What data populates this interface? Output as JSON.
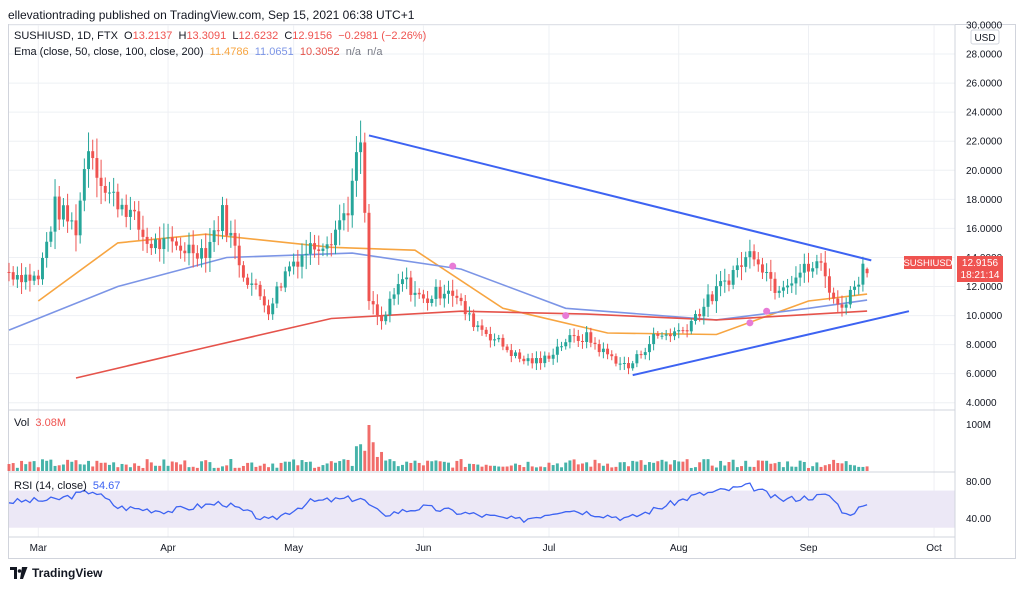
{
  "header": {
    "caption": "ellevationtrading published on TradingView.com, Sep 15, 2021 06:38 UTC+1"
  },
  "footer": {
    "brand": "TradingView",
    "logo_icon": "tradingview-logo-icon"
  },
  "colors": {
    "up": "#26a69a",
    "down": "#ef5350",
    "ema50": "#f7a541",
    "ema100": "#7c95e6",
    "ema200": "#e5534b",
    "trendline": "#3d63f2",
    "rsi": "#3d63f2",
    "rsi_band": "#ece8f6",
    "cross_marker": "#e77bd6",
    "price_badge": "#ef5350",
    "grid": "#eef0f4"
  },
  "legend": {
    "symbol": "SUSHIUSD, 1D, FTX",
    "o_label": "O",
    "o_value": "13.2137",
    "h_label": "H",
    "h_value": "13.3091",
    "l_label": "L",
    "l_value": "12.6232",
    "c_label": "C",
    "c_value": "12.9156",
    "change": "−0.2981 (−2.26%)",
    "ema_label": "Ema (close, 50, close, 100, close, 200)",
    "ema50_value": "11.4786",
    "ema100_value": "11.0651",
    "ema200_value": "10.3052",
    "na1": "n/a",
    "na2": "n/a"
  },
  "price_axis": {
    "currency": "USD",
    "ticks": [
      "30.0000",
      "28.0000",
      "26.0000",
      "24.0000",
      "22.0000",
      "20.0000",
      "18.0000",
      "16.0000",
      "14.0000",
      "12.0000",
      "10.0000",
      "8.0000",
      "6.0000",
      "4.0000"
    ],
    "last_symbol": "SUSHIUSD",
    "last_price": "12.9156",
    "countdown": "18:21:14"
  },
  "volume_pane": {
    "label": "Vol",
    "value": "3.08M",
    "axis_tick": "100M"
  },
  "rsi_pane": {
    "label": "RSI (14, close)",
    "value": "54.67",
    "ticks": [
      "80.00",
      "40.00"
    ]
  },
  "time_axis": {
    "labels": [
      "Mar",
      "Apr",
      "May",
      "Jun",
      "Jul",
      "Aug",
      "Sep",
      "Oct"
    ]
  },
  "chart_data": [
    {
      "type": "candlestick",
      "title": "SUSHIUSD, 1D, FTX",
      "ylim": [
        3.5,
        30
      ],
      "x_range": [
        "2021-02-22",
        "2021-10-06"
      ],
      "close_series": [
        {
          "date": "2021-02-22",
          "close": 13.0
        },
        {
          "date": "2021-03-01",
          "close": 12.5
        },
        {
          "date": "2021-03-05",
          "close": 17.5
        },
        {
          "date": "2021-03-10",
          "close": 16.0
        },
        {
          "date": "2021-03-13",
          "close": 22.0
        },
        {
          "date": "2021-03-17",
          "close": 18.5
        },
        {
          "date": "2021-03-22",
          "close": 17.5
        },
        {
          "date": "2021-03-27",
          "close": 15.0
        },
        {
          "date": "2021-04-04",
          "close": 14.7
        },
        {
          "date": "2021-04-10",
          "close": 14.5
        },
        {
          "date": "2021-04-14",
          "close": 17.0
        },
        {
          "date": "2021-04-19",
          "close": 13.0
        },
        {
          "date": "2021-04-25",
          "close": 10.5
        },
        {
          "date": "2021-04-30",
          "close": 13.5
        },
        {
          "date": "2021-05-05",
          "close": 14.7
        },
        {
          "date": "2021-05-10",
          "close": 15.5
        },
        {
          "date": "2021-05-14",
          "close": 17.5
        },
        {
          "date": "2021-05-17",
          "close": 22.0
        },
        {
          "date": "2021-05-19",
          "close": 11.0
        },
        {
          "date": "2021-05-22",
          "close": 9.5
        },
        {
          "date": "2021-05-27",
          "close": 12.5
        },
        {
          "date": "2021-06-01",
          "close": 11.0
        },
        {
          "date": "2021-06-07",
          "close": 12.0
        },
        {
          "date": "2021-06-12",
          "close": 9.8
        },
        {
          "date": "2021-06-18",
          "close": 8.4
        },
        {
          "date": "2021-06-24",
          "close": 7.0
        },
        {
          "date": "2021-06-29",
          "close": 6.8
        },
        {
          "date": "2021-07-05",
          "close": 8.3
        },
        {
          "date": "2021-07-10",
          "close": 8.5
        },
        {
          "date": "2021-07-14",
          "close": 7.5
        },
        {
          "date": "2021-07-20",
          "close": 6.4
        },
        {
          "date": "2021-07-26",
          "close": 8.5
        },
        {
          "date": "2021-08-02",
          "close": 9.0
        },
        {
          "date": "2021-08-08",
          "close": 11.0
        },
        {
          "date": "2021-08-14",
          "close": 13.0
        },
        {
          "date": "2021-08-19",
          "close": 14.5
        },
        {
          "date": "2021-08-24",
          "close": 12.0
        },
        {
          "date": "2021-08-30",
          "close": 13.0
        },
        {
          "date": "2021-09-04",
          "close": 13.5
        },
        {
          "date": "2021-09-08",
          "close": 10.5
        },
        {
          "date": "2021-09-11",
          "close": 11.5
        },
        {
          "date": "2021-09-14",
          "close": 13.3
        },
        {
          "date": "2021-09-15",
          "close": 12.9156
        }
      ],
      "ema_series": [
        {
          "name": "EMA 50",
          "values": [
            {
              "date": "2021-03-01",
              "value": 11.0
            },
            {
              "date": "2021-03-20",
              "value": 15.0
            },
            {
              "date": "2021-04-10",
              "value": 15.6
            },
            {
              "date": "2021-05-10",
              "value": 14.7
            },
            {
              "date": "2021-05-30",
              "value": 14.5
            },
            {
              "date": "2021-06-20",
              "value": 10.5
            },
            {
              "date": "2021-07-15",
              "value": 8.8
            },
            {
              "date": "2021-08-10",
              "value": 8.7
            },
            {
              "date": "2021-09-01",
              "value": 11.0
            },
            {
              "date": "2021-09-15",
              "value": 11.4786
            }
          ]
        },
        {
          "name": "EMA 100",
          "values": [
            {
              "date": "2021-02-22",
              "value": 9.0
            },
            {
              "date": "2021-03-20",
              "value": 12.0
            },
            {
              "date": "2021-04-15",
              "value": 14.0
            },
            {
              "date": "2021-05-15",
              "value": 14.3
            },
            {
              "date": "2021-06-10",
              "value": 13.2
            },
            {
              "date": "2021-07-05",
              "value": 10.5
            },
            {
              "date": "2021-08-10",
              "value": 9.7
            },
            {
              "date": "2021-09-01",
              "value": 10.5
            },
            {
              "date": "2021-09-15",
              "value": 11.0651
            }
          ]
        },
        {
          "name": "EMA 200",
          "values": [
            {
              "date": "2021-03-10",
              "value": 5.7
            },
            {
              "date": "2021-04-10",
              "value": 7.8
            },
            {
              "date": "2021-05-10",
              "value": 9.8
            },
            {
              "date": "2021-06-10",
              "value": 10.3
            },
            {
              "date": "2021-07-10",
              "value": 10.1
            },
            {
              "date": "2021-08-10",
              "value": 9.7
            },
            {
              "date": "2021-09-15",
              "value": 10.3052
            }
          ]
        }
      ],
      "trendlines": [
        {
          "name": "descending resistance",
          "from": {
            "date": "2021-05-19",
            "value": 22.4
          },
          "to": {
            "date": "2021-09-16",
            "value": 13.8
          }
        },
        {
          "name": "ascending support",
          "from": {
            "date": "2021-07-21",
            "value": 5.9
          },
          "to": {
            "date": "2021-09-25",
            "value": 10.3
          }
        }
      ],
      "cross_markers": [
        {
          "date": "2021-06-08",
          "value": 13.4
        },
        {
          "date": "2021-07-05",
          "value": 10.0
        },
        {
          "date": "2021-08-18",
          "value": 9.5
        },
        {
          "date": "2021-08-22",
          "value": 10.3
        }
      ]
    },
    {
      "type": "bar",
      "title": "Vol",
      "last_value": "3.08M",
      "spike": {
        "date": "2021-05-19",
        "value": "≈ 100M"
      }
    },
    {
      "type": "line",
      "title": "RSI (14, close)",
      "ylim": [
        20,
        90
      ],
      "band": [
        30,
        70
      ],
      "values": [
        {
          "date": "2021-02-22",
          "value": 58
        },
        {
          "date": "2021-03-05",
          "value": 60
        },
        {
          "date": "2021-03-14",
          "value": 70
        },
        {
          "date": "2021-03-20",
          "value": 52
        },
        {
          "date": "2021-04-01",
          "value": 48
        },
        {
          "date": "2021-04-14",
          "value": 57
        },
        {
          "date": "2021-04-25",
          "value": 37
        },
        {
          "date": "2021-05-05",
          "value": 58
        },
        {
          "date": "2021-05-17",
          "value": 62
        },
        {
          "date": "2021-05-22",
          "value": 44
        },
        {
          "date": "2021-06-01",
          "value": 52
        },
        {
          "date": "2021-06-12",
          "value": 45
        },
        {
          "date": "2021-06-24",
          "value": 38
        },
        {
          "date": "2021-07-05",
          "value": 50
        },
        {
          "date": "2021-07-20",
          "value": 40
        },
        {
          "date": "2021-08-05",
          "value": 65
        },
        {
          "date": "2021-08-18",
          "value": 75
        },
        {
          "date": "2021-08-25",
          "value": 60
        },
        {
          "date": "2021-09-06",
          "value": 65
        },
        {
          "date": "2021-09-10",
          "value": 44
        },
        {
          "date": "2021-09-15",
          "value": 54.67
        }
      ]
    }
  ]
}
